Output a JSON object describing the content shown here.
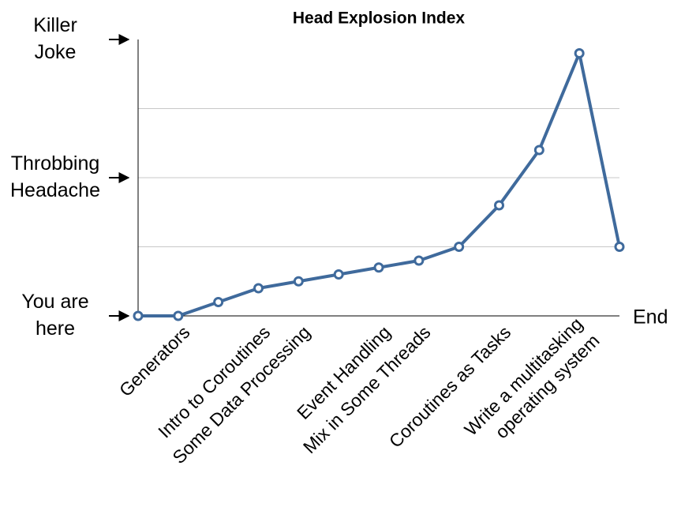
{
  "chart_data": {
    "type": "line",
    "title": "Head Explosion Index",
    "categories": [
      null,
      "Generators",
      null,
      "Intro to Coroutines",
      "Some Data Processing",
      null,
      "Event Handling",
      "Mix in Some Threads",
      null,
      "Coroutines as Tasks",
      null,
      "Write a multitasking\noperating system",
      null
    ],
    "series": [
      {
        "name": "Head Explosion Index",
        "color": "#3f6a9c",
        "values": [
          0,
          0,
          0.2,
          0.4,
          0.5,
          0.6,
          0.7,
          0.8,
          1.0,
          1.6,
          2.4,
          3.8,
          1.0
        ]
      }
    ],
    "ylim": [
      0,
      4
    ],
    "yticks": [
      {
        "value": 0,
        "label": "You are\nhere"
      },
      {
        "value": 1,
        "label": null
      },
      {
        "value": 2,
        "label": "Throbbing\nHeadache"
      },
      {
        "value": 3,
        "label": null
      },
      {
        "value": 4,
        "label": "Killer\nJoke"
      }
    ],
    "grid": true,
    "annotations": [
      "End"
    ]
  }
}
